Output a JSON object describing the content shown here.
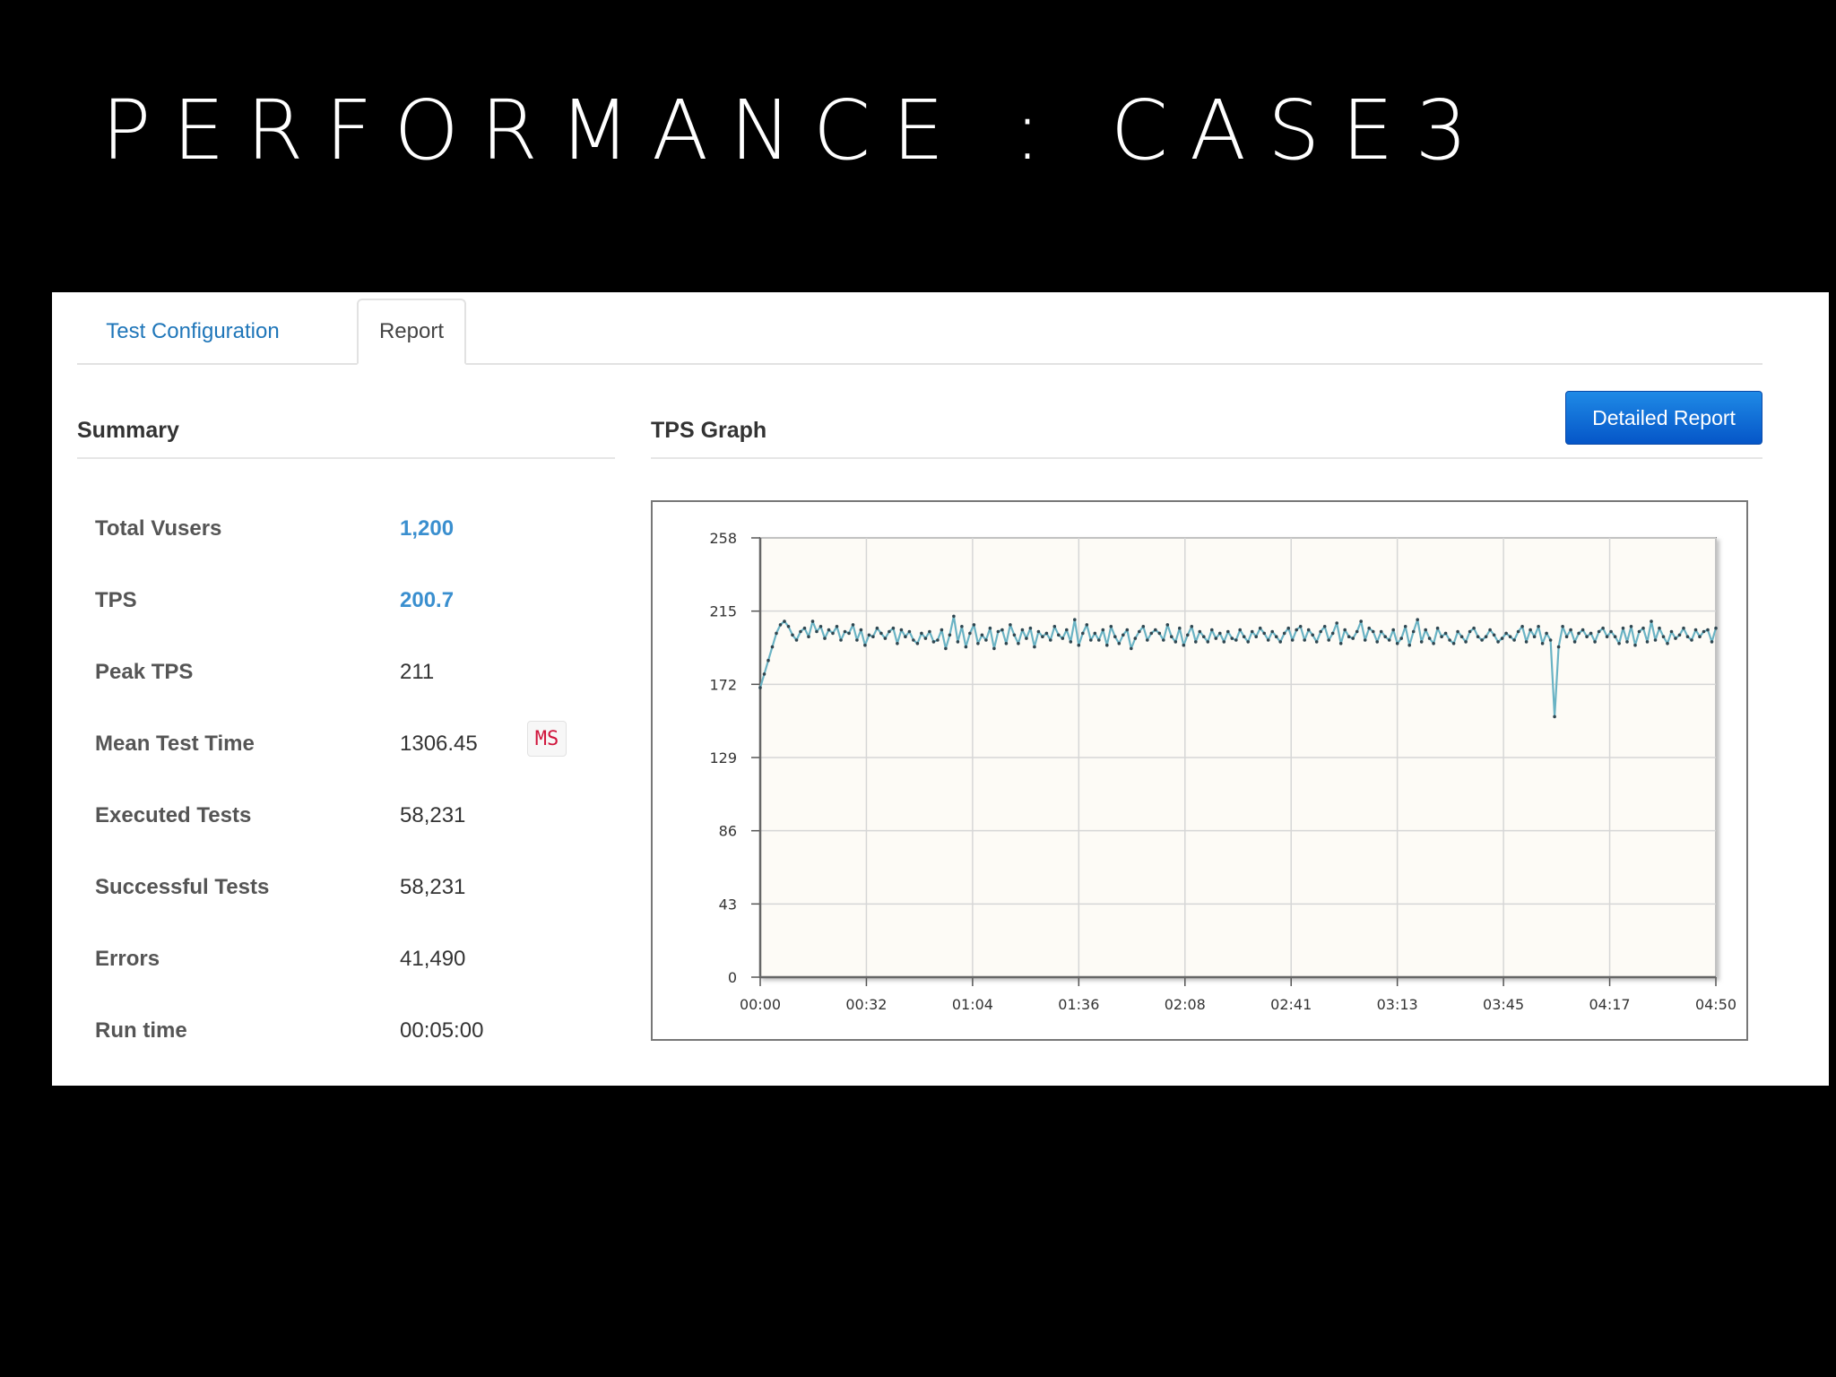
{
  "slide": {
    "title": "PERFORMANCE : CASE3"
  },
  "tabs": [
    {
      "label": "Test Configuration",
      "active": false
    },
    {
      "label": "Report",
      "active": true
    }
  ],
  "summary": {
    "heading": "Summary",
    "rows": [
      {
        "label": "Total Vusers",
        "value": "1,200"
      },
      {
        "label": "TPS",
        "value": "200.7"
      },
      {
        "label": "Peak TPS",
        "value": "211"
      },
      {
        "label": "Mean Test Time",
        "value": "1306.45",
        "unit": "MS"
      },
      {
        "label": "Executed Tests",
        "value": "58,231"
      },
      {
        "label": "Successful Tests",
        "value": "58,231"
      },
      {
        "label": "Errors",
        "value": "41,490"
      },
      {
        "label": "Run time",
        "value": "00:05:00"
      }
    ]
  },
  "tps_section": {
    "heading": "TPS Graph",
    "detailed_report_label": "Detailed Report"
  },
  "colors": {
    "link": "#3a8fcf",
    "button": "#0a66d6",
    "line": "#6ab3c4",
    "plot_bg": "#fdfbf6",
    "unit": "#d0143b"
  },
  "chart_data": {
    "type": "line",
    "title": "",
    "xlabel": "",
    "ylabel": "",
    "ylim": [
      0,
      258
    ],
    "xlim_seconds": [
      0,
      290
    ],
    "y_ticks": [
      "0",
      "43",
      "86",
      "129",
      "172",
      "215",
      "258"
    ],
    "x_ticks": [
      "00:00",
      "00:32",
      "01:04",
      "01:36",
      "02:08",
      "02:41",
      "03:13",
      "03:45",
      "04:17",
      "04:50"
    ],
    "grid": true,
    "series": [
      {
        "values": [
          170,
          178,
          186,
          194,
          202,
          207,
          209,
          206,
          201,
          198,
          203,
          205,
          200,
          209,
          203,
          206,
          199,
          204,
          202,
          206,
          198,
          203,
          202,
          207,
          198,
          204,
          195,
          201,
          200,
          205,
          202,
          199,
          203,
          205,
          196,
          204,
          200,
          203,
          198,
          196,
          202,
          199,
          203,
          197,
          198,
          204,
          193,
          201,
          212,
          197,
          206,
          194,
          202,
          207,
          196,
          201,
          198,
          205,
          193,
          203,
          204,
          196,
          207,
          201,
          196,
          204,
          199,
          205,
          194,
          203,
          200,
          202,
          198,
          206,
          201,
          199,
          204,
          197,
          210,
          195,
          202,
          207,
          198,
          202,
          198,
          204,
          195,
          206,
          200,
          196,
          201,
          204,
          193,
          199,
          203,
          206,
          198,
          202,
          204,
          202,
          198,
          207,
          200,
          197,
          205,
          195,
          201,
          206,
          197,
          203,
          200,
          197,
          204,
          199,
          202,
          197,
          203,
          199,
          198,
          204,
          200,
          197,
          203,
          200,
          205,
          202,
          198,
          203,
          200,
          197,
          202,
          205,
          198,
          204,
          206,
          198,
          204,
          201,
          197,
          203,
          206,
          198,
          202,
          208,
          196,
          204,
          200,
          199,
          203,
          209,
          198,
          205,
          203,
          197,
          203,
          200,
          198,
          204,
          196,
          199,
          206,
          195,
          203,
          210,
          197,
          204,
          199,
          196,
          205,
          200,
          202,
          198,
          196,
          203,
          200,
          197,
          203,
          205,
          200,
          198,
          200,
          204,
          201,
          197,
          199,
          202,
          200,
          198,
          203,
          206,
          197,
          204,
          200,
          206,
          196,
          202,
          198,
          153,
          194,
          206,
          200,
          204,
          197,
          202,
          204,
          200,
          202,
          197,
          203,
          205,
          200,
          203,
          200,
          196,
          205,
          197,
          206,
          195,
          203,
          205,
          197,
          209,
          198,
          205,
          200,
          196,
          203,
          199,
          201,
          205,
          200,
          198,
          204,
          200,
          203,
          204,
          197,
          205
        ]
      }
    ]
  }
}
